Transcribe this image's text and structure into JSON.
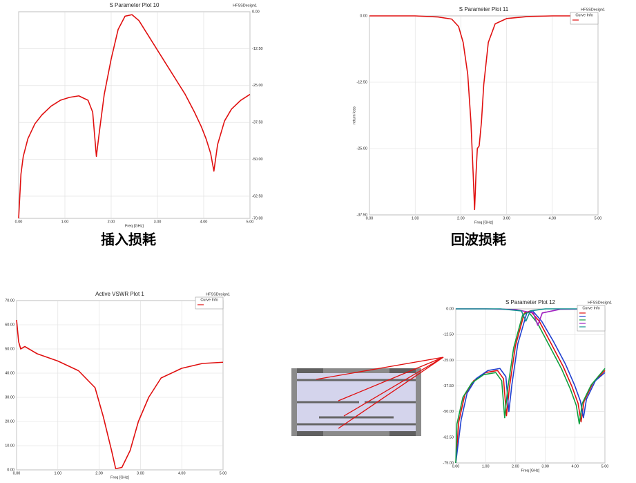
{
  "chart_data": [
    {
      "type": "line",
      "title": "S Parameter Plot 10",
      "design_label": "HFSSDesign1",
      "x_label": "Freq [GHz]",
      "caption": "插入损耗",
      "xlim": [
        0,
        5
      ],
      "ylim": [
        -70,
        0
      ],
      "grid": true,
      "xticks": [
        {
          "value": 0,
          "label": "0.00"
        },
        {
          "value": 1,
          "label": "1.00"
        },
        {
          "value": 2,
          "label": "2.00"
        },
        {
          "value": 3,
          "label": "3.00"
        },
        {
          "value": 4,
          "label": "4.00"
        },
        {
          "value": 5,
          "label": "5.00"
        }
      ],
      "yticks": [
        {
          "value": 0,
          "label": "0.00"
        },
        {
          "value": -12.5,
          "label": "-12.50"
        },
        {
          "value": -25,
          "label": "-25.00"
        },
        {
          "value": -37.5,
          "label": "-37.50"
        },
        {
          "value": -50,
          "label": "-50.00"
        },
        {
          "value": -62.5,
          "label": "-62.50"
        },
        {
          "value": -70,
          "label": "-70.00"
        }
      ],
      "series": [
        {
          "color": "#e01010",
          "x": [
            0,
            0.05,
            0.1,
            0.2,
            0.35,
            0.5,
            0.7,
            0.9,
            1.1,
            1.3,
            1.5,
            1.6,
            1.68,
            1.75,
            1.85,
            2.0,
            2.15,
            2.3,
            2.45,
            2.6,
            2.8,
            3.0,
            3.2,
            3.4,
            3.6,
            3.8,
            3.95,
            4.05,
            4.15,
            4.22,
            4.3,
            4.45,
            4.6,
            4.8,
            5.0
          ],
          "values": [
            -70,
            -55,
            -49,
            -43,
            -38,
            -35,
            -32,
            -30,
            -29,
            -28.5,
            -30,
            -34,
            -49,
            -40,
            -28,
            -16,
            -6,
            -1.5,
            -1,
            -3,
            -8,
            -13,
            -18,
            -23,
            -28,
            -34,
            -39,
            -43,
            -48,
            -54,
            -45,
            -37,
            -33,
            -30,
            -28
          ]
        }
      ]
    },
    {
      "type": "line",
      "title": "S Parameter Plot 11",
      "design_label": "HFSSDesign1",
      "legend_title": "Curve Info",
      "x_label": "Freq [GHz]",
      "y_label": "return loss",
      "caption": "回波损耗",
      "xlim": [
        0,
        5
      ],
      "ylim": [
        -37.5,
        0
      ],
      "grid": true,
      "xticks": [
        {
          "value": 0,
          "label": "0.00"
        },
        {
          "value": 1,
          "label": "1.00"
        },
        {
          "value": 2,
          "label": "2.00"
        },
        {
          "value": 3,
          "label": "3.00"
        },
        {
          "value": 4,
          "label": "4.00"
        },
        {
          "value": 5,
          "label": "5.00"
        }
      ],
      "yticks": [
        {
          "value": 0,
          "label": "0.00"
        },
        {
          "value": -12.5,
          "label": "-12.50"
        },
        {
          "value": -25,
          "label": "-25.00"
        },
        {
          "value": -37.5,
          "label": "-37.50"
        }
      ],
      "series": [
        {
          "color": "#e01010",
          "x": [
            0,
            0.5,
            1.0,
            1.5,
            1.8,
            1.95,
            2.05,
            2.15,
            2.22,
            2.27,
            2.3,
            2.33,
            2.36,
            2.4,
            2.45,
            2.5,
            2.6,
            2.75,
            3.0,
            3.5,
            4.0,
            4.5,
            5.0
          ],
          "values": [
            0,
            0,
            0,
            -0.2,
            -0.6,
            -2,
            -5,
            -11,
            -20,
            -30,
            -36.5,
            -30,
            -25,
            -24.5,
            -20,
            -13,
            -5,
            -1.5,
            -0.5,
            -0.1,
            0,
            0,
            0
          ]
        }
      ]
    },
    {
      "type": "line",
      "title": "Active VSWR Plot 1",
      "design_label": "HFSSDesign1",
      "legend_title": "Curve Info",
      "x_label": "Freq [GHz]",
      "xlim": [
        0,
        5
      ],
      "ylim": [
        0,
        70
      ],
      "grid": true,
      "xticks": [
        {
          "value": 0,
          "label": "0.00"
        },
        {
          "value": 1,
          "label": "1.00"
        },
        {
          "value": 2,
          "label": "2.00"
        },
        {
          "value": 3,
          "label": "3.00"
        },
        {
          "value": 4,
          "label": "4.00"
        },
        {
          "value": 5,
          "label": "5.00"
        }
      ],
      "yticks": [
        {
          "value": 0,
          "label": "0.00"
        },
        {
          "value": 10,
          "label": "10.00"
        },
        {
          "value": 20,
          "label": "20.00"
        },
        {
          "value": 30,
          "label": "30.00"
        },
        {
          "value": 40,
          "label": "40.00"
        },
        {
          "value": 50,
          "label": "50.00"
        },
        {
          "value": 60,
          "label": "60.00"
        },
        {
          "value": 70,
          "label": "70.00"
        }
      ],
      "series": [
        {
          "color": "#e01010",
          "x": [
            0,
            0.05,
            0.1,
            0.2,
            0.5,
            1.0,
            1.5,
            1.9,
            2.1,
            2.3,
            2.4,
            2.55,
            2.75,
            2.95,
            3.2,
            3.5,
            4.0,
            4.5,
            5.0
          ],
          "values": [
            62,
            53,
            50,
            51,
            48,
            45,
            41,
            34,
            22,
            8,
            0.5,
            1,
            8,
            20,
            30,
            38,
            42,
            44,
            44.5
          ]
        }
      ]
    },
    {
      "type": "line",
      "title": "S Parameter Plot 12",
      "design_label": "HFSSDesign1",
      "legend_title": "Curve Info",
      "x_label": "Freq [GHz]",
      "xlim": [
        0,
        5
      ],
      "ylim": [
        -75,
        0
      ],
      "grid": true,
      "xticks": [
        {
          "value": 0,
          "label": "0.00"
        },
        {
          "value": 1,
          "label": "1.00"
        },
        {
          "value": 2,
          "label": "2.00"
        },
        {
          "value": 3,
          "label": "3.00"
        },
        {
          "value": 4,
          "label": "4.00"
        },
        {
          "value": 5,
          "label": "5.00"
        }
      ],
      "yticks": [
        {
          "value": 0,
          "label": "0.00"
        },
        {
          "value": -12.5,
          "label": "-12.50"
        },
        {
          "value": -25,
          "label": "-25.00"
        },
        {
          "value": -37.5,
          "label": "-37.50"
        },
        {
          "value": -50,
          "label": "-50.00"
        },
        {
          "value": -62.5,
          "label": "-62.50"
        },
        {
          "value": -75,
          "label": "-75.00"
        }
      ],
      "series": [
        {
          "color": "#e01010",
          "x": [
            0,
            0.1,
            0.3,
            0.6,
            1.0,
            1.4,
            1.6,
            1.7,
            1.8,
            2.0,
            2.3,
            2.5,
            2.8,
            3.2,
            3.6,
            3.9,
            4.1,
            4.2,
            4.3,
            4.6,
            5.0
          ],
          "values": [
            -75,
            -55,
            -42,
            -35,
            -31,
            -30,
            -34,
            -52,
            -38,
            -18,
            -2,
            -1,
            -6,
            -17,
            -28,
            -38,
            -46,
            -55,
            -45,
            -36,
            -30
          ]
        },
        {
          "color": "#2040d0",
          "x": [
            0,
            0.18,
            0.38,
            0.68,
            1.08,
            1.48,
            1.68,
            1.78,
            1.88,
            2.08,
            2.38,
            2.58,
            2.88,
            3.28,
            3.68,
            3.98,
            4.18,
            4.28,
            4.38,
            4.68,
            5.0
          ],
          "values": [
            -75,
            -54,
            -41,
            -34,
            -30,
            -29,
            -33,
            -50,
            -37,
            -17,
            -2,
            -1,
            -6,
            -16,
            -27,
            -37,
            -45,
            -53,
            -44,
            -35,
            -31
          ]
        },
        {
          "color": "#10a040",
          "x": [
            0,
            0.04,
            0.24,
            0.54,
            0.94,
            1.34,
            1.54,
            1.64,
            1.74,
            1.94,
            2.24,
            2.44,
            2.74,
            3.14,
            3.54,
            3.84,
            4.04,
            4.14,
            4.24,
            4.54,
            5.0
          ],
          "values": [
            -75,
            -56,
            -43,
            -36,
            -32,
            -31,
            -35,
            -53,
            -39,
            -19,
            -3,
            -1.5,
            -7,
            -18,
            -29,
            -39,
            -47,
            -56,
            -46,
            -37,
            -29
          ]
        },
        {
          "color": "#a020c0",
          "x": [
            0,
            1.0,
            2.0,
            2.6,
            2.75,
            2.9,
            3.5,
            5.0
          ],
          "values": [
            0,
            0,
            -0.3,
            -2,
            -8,
            -2,
            -0.2,
            0
          ]
        },
        {
          "color": "#109090",
          "x": [
            0,
            1.5,
            2.2,
            2.35,
            2.5,
            3.0,
            5.0
          ],
          "values": [
            0,
            0,
            -1,
            -6,
            -1,
            0,
            0
          ]
        }
      ]
    }
  ]
}
